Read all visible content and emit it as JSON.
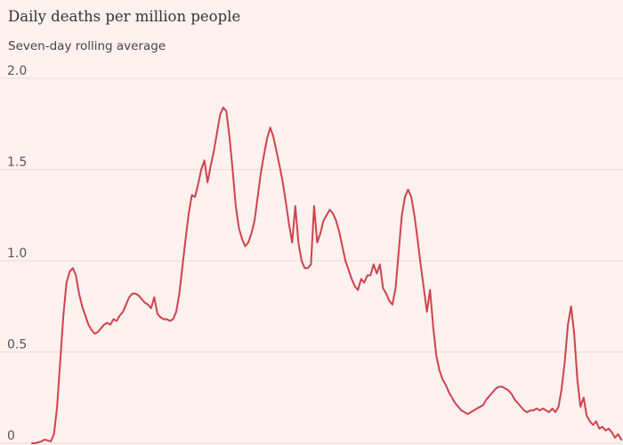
{
  "chart_data": {
    "type": "line",
    "title": "Daily deaths per million people",
    "subtitle": "Seven-day rolling average",
    "xlabel": "",
    "ylabel": "",
    "ylim": [
      0,
      2.0
    ],
    "grid": true,
    "yticks": [
      {
        "value": 0,
        "label": "0"
      },
      {
        "value": 0.5,
        "label": "0.5"
      },
      {
        "value": 1.0,
        "label": "1.0"
      },
      {
        "value": 1.5,
        "label": "1.5"
      },
      {
        "value": 2.0,
        "label": "2.0"
      }
    ],
    "colors": {
      "line": "#d0424b",
      "grid": "#e8dcdb",
      "background": "#fff1f0"
    },
    "series": [
      {
        "values": [
          0,
          0,
          0.005,
          0.01,
          0.02,
          0.015,
          0.01,
          0.05,
          0.2,
          0.45,
          0.7,
          0.88,
          0.94,
          0.96,
          0.92,
          0.82,
          0.75,
          0.7,
          0.65,
          0.62,
          0.6,
          0.61,
          0.63,
          0.65,
          0.66,
          0.65,
          0.68,
          0.67,
          0.7,
          0.72,
          0.76,
          0.8,
          0.82,
          0.82,
          0.81,
          0.79,
          0.77,
          0.76,
          0.74,
          0.8,
          0.71,
          0.69,
          0.68,
          0.68,
          0.67,
          0.68,
          0.72,
          0.82,
          0.97,
          1.12,
          1.26,
          1.36,
          1.35,
          1.42,
          1.5,
          1.55,
          1.43,
          1.52,
          1.6,
          1.7,
          1.8,
          1.84,
          1.82,
          1.68,
          1.5,
          1.3,
          1.18,
          1.12,
          1.08,
          1.1,
          1.15,
          1.22,
          1.35,
          1.48,
          1.58,
          1.67,
          1.73,
          1.68,
          1.6,
          1.52,
          1.43,
          1.32,
          1.2,
          1.1,
          1.3,
          1.1,
          1.0,
          0.96,
          0.96,
          0.98,
          1.3,
          1.1,
          1.15,
          1.22,
          1.25,
          1.28,
          1.26,
          1.22,
          1.16,
          1.08,
          1.0,
          0.95,
          0.9,
          0.86,
          0.84,
          0.9,
          0.88,
          0.92,
          0.92,
          0.98,
          0.93,
          0.98,
          0.85,
          0.82,
          0.78,
          0.76,
          0.85,
          1.05,
          1.25,
          1.35,
          1.39,
          1.35,
          1.25,
          1.12,
          0.98,
          0.85,
          0.72,
          0.84,
          0.64,
          0.48,
          0.4,
          0.35,
          0.32,
          0.28,
          0.25,
          0.22,
          0.2,
          0.18,
          0.17,
          0.16,
          0.17,
          0.18,
          0.19,
          0.2,
          0.21,
          0.24,
          0.26,
          0.28,
          0.3,
          0.31,
          0.31,
          0.3,
          0.29,
          0.27,
          0.24,
          0.22,
          0.2,
          0.18,
          0.17,
          0.18,
          0.18,
          0.19,
          0.18,
          0.19,
          0.18,
          0.17,
          0.19,
          0.17,
          0.2,
          0.3,
          0.45,
          0.65,
          0.75,
          0.6,
          0.35,
          0.2,
          0.25,
          0.15,
          0.12,
          0.1,
          0.12,
          0.08,
          0.09,
          0.07,
          0.08,
          0.06,
          0.03,
          0.05,
          0.02
        ]
      }
    ]
  }
}
